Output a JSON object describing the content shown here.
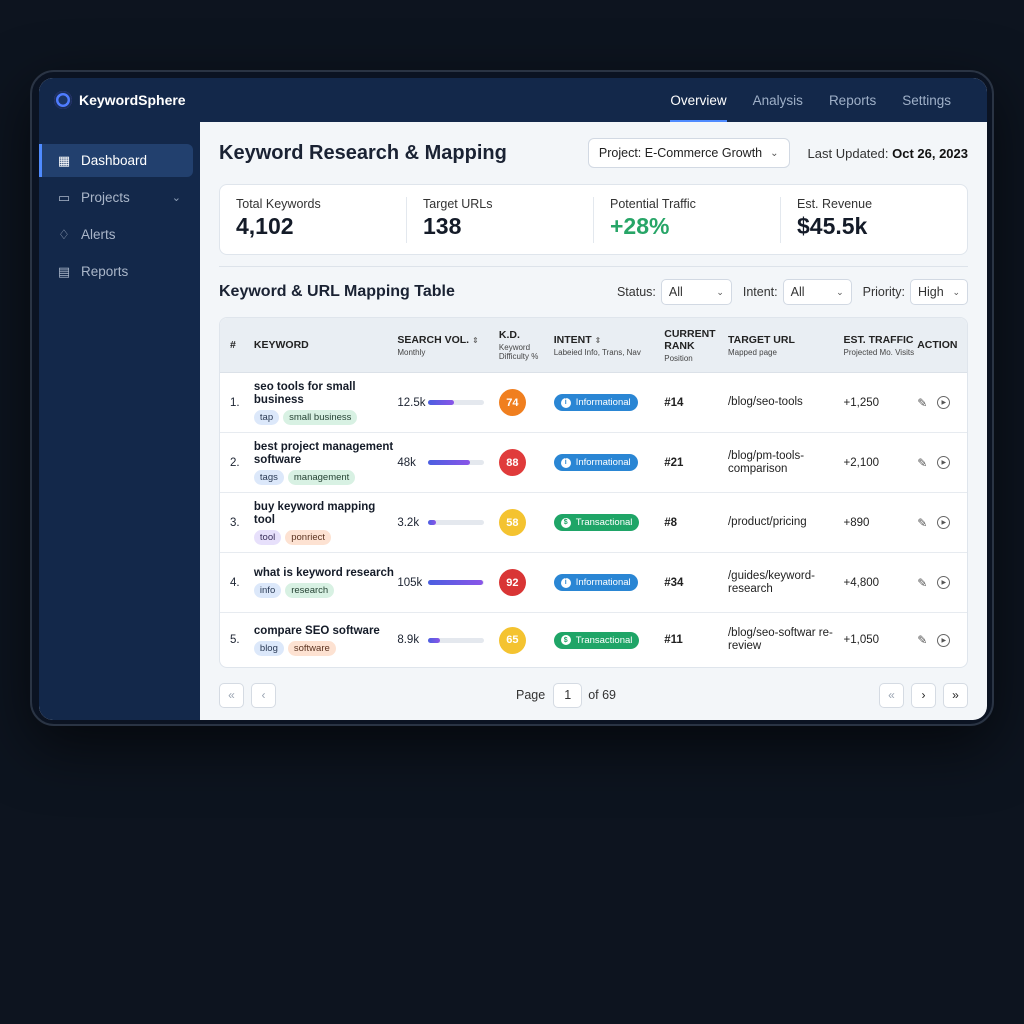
{
  "app": {
    "name": "KeywordSphere"
  },
  "sidebar": {
    "items": [
      {
        "label": "Dashboard",
        "icon": "grid-icon",
        "active": true
      },
      {
        "label": "Projects",
        "icon": "folder-icon",
        "active": false
      },
      {
        "label": "Alerts",
        "icon": "bell-icon",
        "active": false
      },
      {
        "label": "Reports",
        "icon": "document-icon",
        "active": false
      }
    ]
  },
  "topnav": {
    "tabs": [
      "Overview",
      "Analysis",
      "Reports",
      "Settings"
    ],
    "active": "Overview"
  },
  "header": {
    "title": "Keyword Research & Mapping",
    "project_select": "Project: E-Commerce Growth",
    "last_updated_label": "Last Updated:",
    "last_updated_value": "Oct 26, 2023"
  },
  "stats": [
    {
      "label": "Total Keywords",
      "value": "4,102"
    },
    {
      "label": "Target URLs",
      "value": "138"
    },
    {
      "label": "Potential Traffic",
      "value": "+28%"
    },
    {
      "label": "Est. Revenue",
      "value": "$45.5k"
    }
  ],
  "table": {
    "title": "Keyword & URL Mapping Table",
    "filters": {
      "status_label": "Status:",
      "status_value": "All",
      "intent_label": "Intent:",
      "intent_value": "All",
      "priority_label": "Priority:",
      "priority_value": "High"
    },
    "columns": {
      "num": "#",
      "keyword": "KEYWORD",
      "volume": "SEARCH VOL.",
      "volume_sub": "Monthly",
      "kd": "K.D.",
      "kd_sub": "Keyword Difficulty %",
      "intent": "INTENT",
      "intent_sub": "Labeied Info, Trans, Nav",
      "rank": "CURRENT RANK",
      "rank_sub": "Position",
      "url": "TARGET URL",
      "url_sub": "Mapped page",
      "traffic": "EST. TRAFFIC",
      "traffic_sub": "Projected Mo. Visits",
      "action": "ACTION"
    },
    "rows": [
      {
        "num": "1.",
        "keyword": "seo tools for small business",
        "tags": [
          {
            "t": "tap",
            "c": "blue"
          },
          {
            "t": "small business",
            "c": "green"
          }
        ],
        "volume": "12.5k",
        "vol_frac": 0.45,
        "kd": "74",
        "kd_color": "#f07f1f",
        "intent": "Informational",
        "intent_color": "#2a86d4",
        "rank": "#14",
        "url": "/blog/seo-tools",
        "traffic": "+1,250"
      },
      {
        "num": "2.",
        "keyword": "best project management software",
        "tags": [
          {
            "t": "tags",
            "c": "blue"
          },
          {
            "t": "management",
            "c": "green"
          }
        ],
        "volume": "48k",
        "vol_frac": 0.75,
        "kd": "88",
        "kd_color": "#e03b3b",
        "intent": "Informational",
        "intent_color": "#2a86d4",
        "rank": "#21",
        "url": "/blog/pm-tools-comparison",
        "traffic": "+2,100"
      },
      {
        "num": "3.",
        "keyword": "buy keyword mapping tool",
        "tags": [
          {
            "t": "tool",
            "c": "purple"
          },
          {
            "t": "ponriect",
            "c": "orange"
          }
        ],
        "volume": "3.2k",
        "vol_frac": 0.14,
        "kd": "58",
        "kd_color": "#f4c330",
        "intent": "Transactional",
        "intent_color": "#1fa567",
        "rank": "#8",
        "url": "/product/pricing",
        "traffic": "+890"
      },
      {
        "num": "4.",
        "keyword": "what is keyword research",
        "tags": [
          {
            "t": "info",
            "c": "blue"
          },
          {
            "t": "research",
            "c": "green"
          }
        ],
        "volume": "105k",
        "vol_frac": 0.98,
        "kd": "92",
        "kd_color": "#d93535",
        "intent": "Informational",
        "intent_color": "#2a86d4",
        "rank": "#34",
        "url": "/guides/keyword-research",
        "traffic": "+4,800"
      },
      {
        "num": "5.",
        "keyword": "compare SEO software",
        "tags": [
          {
            "t": "blog",
            "c": "blue"
          },
          {
            "t": "software",
            "c": "orange"
          }
        ],
        "volume": "8.9k",
        "vol_frac": 0.2,
        "kd": "65",
        "kd_color": "#f4c330",
        "intent": "Transactional",
        "intent_color": "#1fa567",
        "rank": "#11",
        "url": "/blog/seo-softwar re-review",
        "traffic": "+1,050"
      }
    ]
  },
  "pagination": {
    "page_label": "Page",
    "current": "1",
    "total_label": "of 69"
  }
}
